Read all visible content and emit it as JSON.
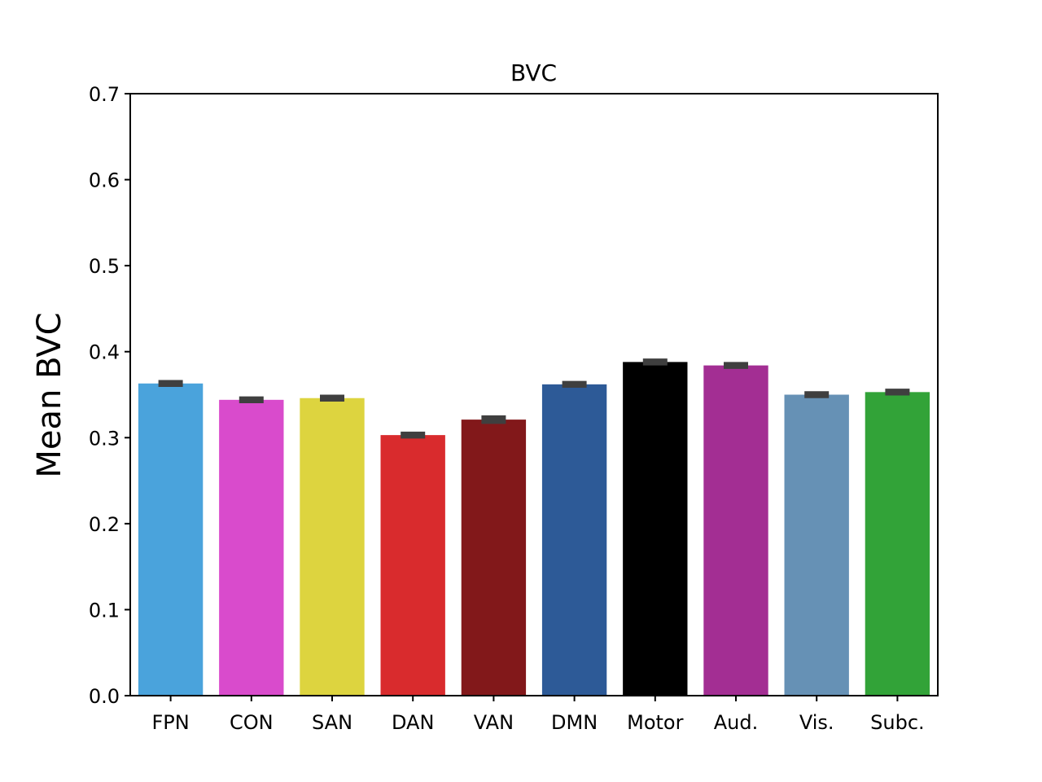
{
  "chart_data": {
    "type": "bar",
    "title": "BVC",
    "xlabel": "",
    "ylabel": "Mean BVC",
    "ylim": [
      0,
      0.7
    ],
    "yticks": [
      "0.0",
      "0.1",
      "0.2",
      "0.3",
      "0.4",
      "0.5",
      "0.6",
      "0.7"
    ],
    "categories": [
      "FPN",
      "CON",
      "SAN",
      "DAN",
      "VAN",
      "DMN",
      "Motor",
      "Aud.",
      "Vis.",
      "Subc."
    ],
    "values": [
      0.363,
      0.344,
      0.346,
      0.303,
      0.321,
      0.362,
      0.388,
      0.384,
      0.35,
      0.353
    ],
    "errors": [
      0.004,
      0.004,
      0.004,
      0.004,
      0.005,
      0.004,
      0.004,
      0.004,
      0.004,
      0.004
    ],
    "colors": [
      "#4aa3dc",
      "#d94bcc",
      "#ddd43f",
      "#d92b2d",
      "#82181a",
      "#2d5a97",
      "#000000",
      "#a32e93",
      "#6691b5",
      "#32a338"
    ],
    "error_color": "#3f3f3f",
    "grid": false,
    "legend": "none"
  }
}
